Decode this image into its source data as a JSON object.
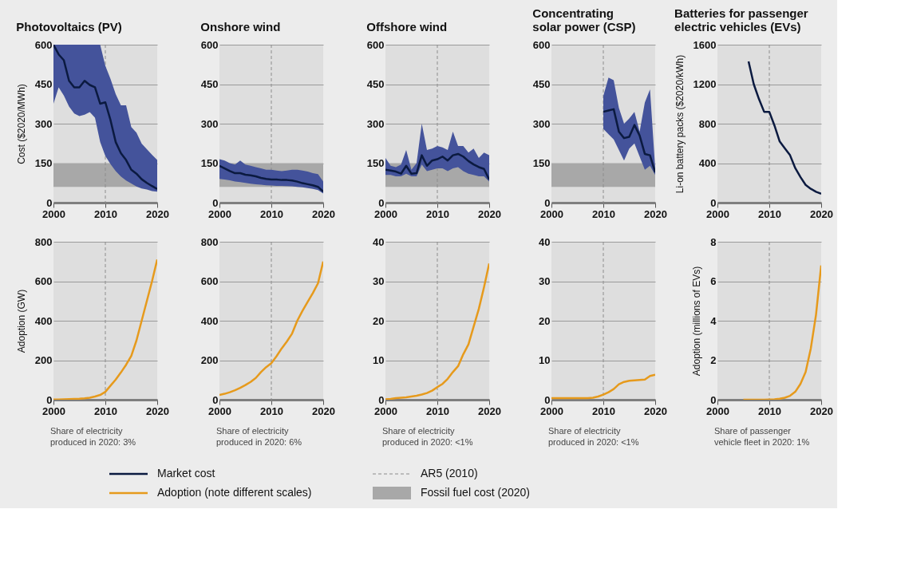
{
  "chart_data": [
    {
      "type": "line",
      "title": "Photovoltaics (PV)",
      "ylabel": "Cost ($2020/MWh)",
      "xlim": [
        2000,
        2020
      ],
      "xticks": [
        2000,
        2010,
        2020
      ],
      "ylim": [
        0,
        600
      ],
      "yticks": [
        0,
        150,
        300,
        450,
        600
      ],
      "grid": "y",
      "legend": "bottom",
      "x": [
        2000,
        2001,
        2002,
        2003,
        2004,
        2005,
        2006,
        2007,
        2008,
        2009,
        2010,
        2011,
        2012,
        2013,
        2014,
        2015,
        2016,
        2017,
        2018,
        2019,
        2020
      ],
      "series": [
        {
          "name": "Market cost",
          "color": "#0b1a40",
          "values": [
            600,
            563,
            541,
            463,
            438,
            438,
            463,
            447,
            438,
            376,
            381,
            313,
            230,
            188,
            162,
            125,
            110,
            89,
            75,
            63,
            52
          ],
          "lower": [
            376,
            438,
            407,
            365,
            339,
            329,
            334,
            344,
            323,
            230,
            177,
            146,
            120,
            99,
            84,
            73,
            61,
            54,
            50,
            44,
            42
          ],
          "upper": [
            600,
            600,
            600,
            600,
            600,
            600,
            600,
            600,
            600,
            600,
            520,
            470,
            412,
            370,
            370,
            287,
            266,
            224,
            203,
            182,
            162
          ]
        }
      ],
      "ref_lines": [
        {
          "axis": "x",
          "value": 2010,
          "label": "AR5 (2010)",
          "line_style": "dashed",
          "color": "#8c8c8c"
        }
      ],
      "bands": [
        {
          "axis": "y",
          "from": 60,
          "to": 150,
          "label": "Fossil fuel cost (2020)",
          "color": "#a8a8a8"
        }
      ]
    },
    {
      "type": "line",
      "title": "Onshore wind",
      "xlim": [
        2000,
        2020
      ],
      "xticks": [
        2000,
        2010,
        2020
      ],
      "ylim": [
        0,
        600
      ],
      "yticks": [
        0,
        150,
        300,
        450,
        600
      ],
      "grid": "y",
      "x": [
        2000,
        2001,
        2002,
        2003,
        2004,
        2005,
        2006,
        2007,
        2008,
        2009,
        2010,
        2011,
        2012,
        2013,
        2014,
        2015,
        2016,
        2017,
        2018,
        2019,
        2020
      ],
      "series": [
        {
          "color": "#0b1a40",
          "values": [
            140,
            130,
            120,
            112,
            112,
            106,
            104,
            100,
            94,
            90,
            88,
            88,
            86,
            86,
            84,
            80,
            74,
            70,
            66,
            60,
            42
          ],
          "lower": [
            90,
            88,
            85,
            80,
            78,
            75,
            72,
            70,
            68,
            66,
            65,
            64,
            64,
            63,
            62,
            60,
            58,
            55,
            52,
            48,
            35
          ],
          "upper": [
            165,
            160,
            150,
            145,
            160,
            145,
            140,
            135,
            130,
            125,
            125,
            122,
            120,
            122,
            125,
            125,
            122,
            118,
            112,
            108,
            80
          ]
        }
      ],
      "ref_lines": [
        {
          "axis": "x",
          "value": 2010,
          "line_style": "dashed",
          "color": "#8c8c8c"
        }
      ],
      "bands": [
        {
          "axis": "y",
          "from": 60,
          "to": 150,
          "color": "#a8a8a8"
        }
      ]
    },
    {
      "type": "line",
      "title": "Offshore wind",
      "xlim": [
        2000,
        2020
      ],
      "xticks": [
        2000,
        2010,
        2020
      ],
      "ylim": [
        0,
        600
      ],
      "yticks": [
        0,
        150,
        300,
        450,
        600
      ],
      "grid": "y",
      "x": [
        2000,
        2001,
        2002,
        2003,
        2004,
        2005,
        2006,
        2007,
        2008,
        2009,
        2010,
        2011,
        2012,
        2013,
        2014,
        2015,
        2016,
        2017,
        2018,
        2019,
        2020
      ],
      "series": [
        {
          "color": "#0b1a40",
          "values": [
            125,
            122,
            118,
            110,
            140,
            110,
            112,
            180,
            140,
            160,
            165,
            175,
            160,
            180,
            185,
            175,
            158,
            145,
            135,
            128,
            88
          ],
          "lower": [
            105,
            105,
            100,
            100,
            110,
            100,
            100,
            145,
            120,
            125,
            130,
            130,
            120,
            130,
            135,
            120,
            110,
            105,
            100,
            100,
            80
          ],
          "upper": [
            170,
            140,
            135,
            145,
            200,
            125,
            150,
            300,
            200,
            205,
            215,
            210,
            200,
            270,
            215,
            215,
            190,
            205,
            170,
            190,
            180
          ]
        }
      ],
      "ref_lines": [
        {
          "axis": "x",
          "value": 2010,
          "line_style": "dashed",
          "color": "#8c8c8c"
        }
      ],
      "bands": [
        {
          "axis": "y",
          "from": 60,
          "to": 150,
          "color": "#a8a8a8"
        }
      ]
    },
    {
      "type": "line",
      "title": "Concentrating\nsolar power (CSP)",
      "xlim": [
        2000,
        2020
      ],
      "xticks": [
        2000,
        2010,
        2020
      ],
      "ylim": [
        0,
        600
      ],
      "yticks": [
        0,
        150,
        300,
        450,
        600
      ],
      "grid": "y",
      "x": [
        2010,
        2011,
        2012,
        2013,
        2014,
        2015,
        2016,
        2017,
        2018,
        2019,
        2020
      ],
      "series": [
        {
          "color": "#0b1a40",
          "values": [
            345,
            350,
            355,
            270,
            245,
            250,
            295,
            255,
            185,
            180,
            115
          ],
          "lower": [
            280,
            260,
            240,
            200,
            160,
            205,
            225,
            175,
            125,
            140,
            105
          ],
          "upper": [
            405,
            475,
            465,
            360,
            300,
            320,
            345,
            270,
            380,
            430,
            130
          ]
        }
      ],
      "ref_lines": [
        {
          "axis": "x",
          "value": 2010,
          "line_style": "dashed",
          "color": "#8c8c8c"
        }
      ],
      "bands": [
        {
          "axis": "y",
          "from": 60,
          "to": 150,
          "color": "#a8a8a8"
        }
      ]
    },
    {
      "type": "line",
      "title": "Batteries for passenger\nelectric vehicles (EVs)",
      "ylabel": "Li-on battery packs ($2020/kWh)",
      "xlim": [
        2000,
        2020
      ],
      "xticks": [
        2000,
        2010,
        2020
      ],
      "ylim": [
        0,
        1600
      ],
      "yticks": [
        0,
        400,
        800,
        1200,
        1600
      ],
      "grid": "y",
      "x": [
        2006,
        2007,
        2008,
        2009,
        2010,
        2011,
        2012,
        2013,
        2014,
        2015,
        2016,
        2017,
        2018,
        2019,
        2020
      ],
      "series": [
        {
          "color": "#0b1a40",
          "values": [
            1430,
            1200,
            1050,
            920,
            920,
            780,
            620,
            550,
            480,
            350,
            260,
            180,
            140,
            110,
            90
          ]
        }
      ],
      "ref_lines": [
        {
          "axis": "x",
          "value": 2010,
          "line_style": "dashed",
          "color": "#8c8c8c"
        }
      ]
    },
    {
      "type": "line",
      "ylabel": "Adoption (GW)",
      "xlim": [
        2000,
        2020
      ],
      "xticks": [
        2000,
        2010,
        2020
      ],
      "ylim": [
        0,
        800
      ],
      "yticks": [
        0,
        200,
        400,
        600,
        800
      ],
      "grid": "y",
      "legend": "bottom",
      "x": [
        2000,
        2001,
        2002,
        2003,
        2004,
        2005,
        2006,
        2007,
        2008,
        2009,
        2010,
        2011,
        2012,
        2013,
        2014,
        2015,
        2016,
        2017,
        2018,
        2019,
        2020
      ],
      "series": [
        {
          "name": "Adoption (note different scales)",
          "color": "#e69a1c",
          "values": [
            1,
            1,
            2,
            3,
            4,
            5,
            7,
            10,
            16,
            24,
            40,
            71,
            102,
            138,
            177,
            222,
            300,
            400,
            500,
            600,
            710
          ]
        }
      ],
      "ref_lines": [
        {
          "axis": "x",
          "value": 2010,
          "line_style": "dashed",
          "color": "#8c8c8c"
        }
      ],
      "annotations": [
        "Share of electricity produced in 2020: 3%"
      ]
    },
    {
      "type": "line",
      "xlim": [
        2000,
        2020
      ],
      "xticks": [
        2000,
        2010,
        2020
      ],
      "ylim": [
        0,
        800
      ],
      "yticks": [
        0,
        200,
        400,
        600,
        800
      ],
      "grid": "y",
      "x": [
        2000,
        2001,
        2002,
        2003,
        2004,
        2005,
        2006,
        2007,
        2008,
        2009,
        2010,
        2011,
        2012,
        2013,
        2014,
        2015,
        2016,
        2017,
        2018,
        2019,
        2020
      ],
      "series": [
        {
          "color": "#e69a1c",
          "values": [
            24,
            30,
            38,
            48,
            60,
            74,
            90,
            110,
            140,
            165,
            185,
            220,
            260,
            295,
            335,
            400,
            450,
            495,
            540,
            590,
            700
          ]
        }
      ],
      "ref_lines": [
        {
          "axis": "x",
          "value": 2010,
          "line_style": "dashed",
          "color": "#8c8c8c"
        }
      ],
      "annotations": [
        "Share of electricity produced in 2020: 6%"
      ]
    },
    {
      "type": "line",
      "xlim": [
        2000,
        2020
      ],
      "xticks": [
        2000,
        2010,
        2020
      ],
      "ylim": [
        0,
        40
      ],
      "yticks": [
        0,
        10,
        20,
        30,
        40
      ],
      "grid": "y",
      "x": [
        2000,
        2001,
        2002,
        2003,
        2004,
        2005,
        2006,
        2007,
        2008,
        2009,
        2010,
        2011,
        2012,
        2013,
        2014,
        2015,
        2016,
        2017,
        2018,
        2019,
        2020
      ],
      "series": [
        {
          "color": "#e69a1c",
          "values": [
            0.1,
            0.2,
            0.4,
            0.5,
            0.6,
            0.8,
            1,
            1.3,
            1.7,
            2.3,
            3.2,
            4,
            5.3,
            7,
            8.5,
            11.5,
            14,
            18.5,
            23,
            28.5,
            34.5
          ]
        }
      ],
      "ref_lines": [
        {
          "axis": "x",
          "value": 2010,
          "line_style": "dashed",
          "color": "#8c8c8c"
        }
      ],
      "annotations": [
        "Share of electricity produced in 2020: <1%"
      ]
    },
    {
      "type": "line",
      "xlim": [
        2000,
        2020
      ],
      "xticks": [
        2000,
        2010,
        2020
      ],
      "ylim": [
        0,
        40
      ],
      "yticks": [
        0,
        10,
        20,
        30,
        40
      ],
      "grid": "y",
      "x": [
        2000,
        2001,
        2002,
        2003,
        2004,
        2005,
        2006,
        2007,
        2008,
        2009,
        2010,
        2011,
        2012,
        2013,
        2014,
        2015,
        2016,
        2017,
        2018,
        2019,
        2020
      ],
      "series": [
        {
          "color": "#e69a1c",
          "values": [
            0.4,
            0.4,
            0.4,
            0.4,
            0.4,
            0.4,
            0.4,
            0.4,
            0.5,
            0.8,
            1.3,
            1.9,
            2.7,
            3.9,
            4.5,
            4.8,
            4.9,
            5,
            5.1,
            6,
            6.3
          ]
        }
      ],
      "ref_lines": [
        {
          "axis": "x",
          "value": 2010,
          "line_style": "dashed",
          "color": "#8c8c8c"
        }
      ],
      "annotations": [
        "Share of electricity produced in 2020: <1%"
      ]
    },
    {
      "type": "line",
      "ylabel": "Adoption (millions of EVs)",
      "xlim": [
        2000,
        2020
      ],
      "xticks": [
        2000,
        2010,
        2020
      ],
      "ylim": [
        0,
        8
      ],
      "yticks": [
        0,
        2,
        4,
        6,
        8
      ],
      "grid": "y",
      "x": [
        2005,
        2006,
        2007,
        2008,
        2009,
        2010,
        2011,
        2012,
        2013,
        2014,
        2015,
        2016,
        2017,
        2018,
        2019,
        2020
      ],
      "series": [
        {
          "color": "#e69a1c",
          "values": [
            0,
            0,
            0,
            0,
            0,
            0.01,
            0.02,
            0.05,
            0.1,
            0.2,
            0.4,
            0.8,
            1.4,
            2.6,
            4.3,
            6.8
          ]
        }
      ],
      "ref_lines": [
        {
          "axis": "x",
          "value": 2010,
          "line_style": "dashed",
          "color": "#8c8c8c"
        }
      ],
      "annotations": [
        "Share of passenger vehicle fleet in 2020: 1%"
      ]
    }
  ]
}
